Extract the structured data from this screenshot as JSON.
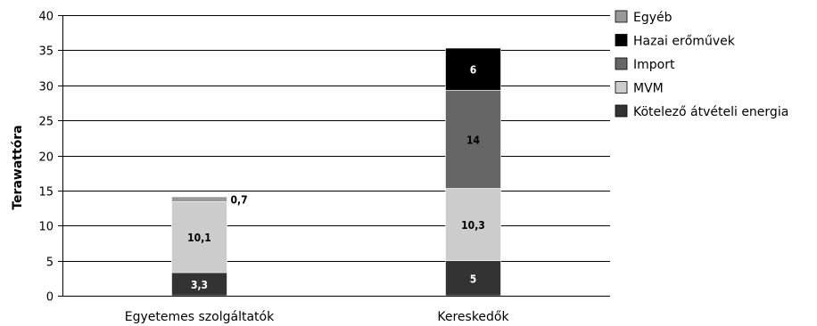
{
  "chart_data": {
    "type": "bar",
    "stacked": true,
    "categories": [
      "Egyetemes szolgáltatók",
      "Kereskedők"
    ],
    "series": [
      {
        "name": "Kötelező átvételi energia",
        "values": [
          3.3,
          5
        ],
        "labels": [
          "3,3",
          "5"
        ],
        "color": "#333333",
        "label_color": "#ffffff"
      },
      {
        "name": "MVM",
        "values": [
          10.1,
          10.3
        ],
        "labels": [
          "10,1",
          "10,3"
        ],
        "color": "#cccccc",
        "label_color": "#000000"
      },
      {
        "name": "Import",
        "values": [
          0,
          14
        ],
        "labels": [
          "",
          "14"
        ],
        "color": "#666666",
        "label_color": "#000000"
      },
      {
        "name": "Hazai erőművek",
        "values": [
          0,
          6
        ],
        "labels": [
          "",
          "6"
        ],
        "color": "#000000",
        "label_color": "#ffffff"
      },
      {
        "name": "Egyéb",
        "values": [
          0.7,
          0
        ],
        "labels": [
          "0,7",
          ""
        ],
        "color": "#999999",
        "label_color": "#000000"
      }
    ],
    "ylabel": "Terawattóra",
    "xlabel": "",
    "ylim": [
      0,
      40
    ],
    "yticks": [
      "0",
      "5",
      "10",
      "15",
      "20",
      "25",
      "30",
      "35",
      "40"
    ],
    "grid": true,
    "legend_position": "right",
    "legend_order": [
      "Egyéb",
      "Hazai erőművek",
      "Import",
      "MVM",
      "Kötelező átvételi energia"
    ]
  }
}
